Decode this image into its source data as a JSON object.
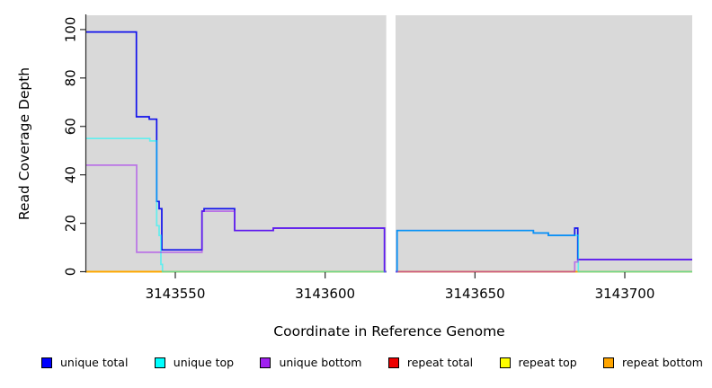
{
  "chart_data": {
    "type": "line",
    "subtype": "step-coverage",
    "title": "",
    "xlabel": "Coordinate in Reference Genome",
    "ylabel": "Read Coverage Depth",
    "xlim": [
      3143520.3,
      3143722.5
    ],
    "ylim": [
      0,
      105.9
    ],
    "x_ticks": [
      3143550,
      3143600,
      3143650,
      3143700
    ],
    "y_ticks": [
      0,
      20,
      40,
      60,
      80,
      100
    ],
    "grid": false,
    "legend_position": "bottom",
    "panel_bg": "#d9d9d9",
    "axis_color": "#2b2b2b",
    "no_data_gap": {
      "from": 3143620.4,
      "to": 3143623.5
    },
    "series": [
      {
        "name": "repeat total",
        "key": "repeat_total",
        "color": "#EE0000",
        "alpha": 1,
        "paths": [
          [
            [
              3143520.3,
              0
            ],
            [
              3143620.4,
              0
            ]
          ],
          [
            [
              3143623.5,
              0
            ],
            [
              3143722.5,
              0
            ]
          ]
        ]
      },
      {
        "name": "repeat top",
        "key": "repeat_top",
        "color": "#FFFF00",
        "alpha": 1,
        "paths": [
          [
            [
              3143520.3,
              0
            ],
            [
              3143620.4,
              0
            ]
          ],
          [
            [
              3143623.5,
              0
            ],
            [
              3143722.5,
              0
            ]
          ]
        ]
      },
      {
        "name": "repeat bottom",
        "key": "repeat_bottom",
        "color": "#FFA500",
        "alpha": 1,
        "paths": [
          [
            [
              3143520.3,
              0
            ],
            [
              3143620.4,
              0
            ]
          ],
          [
            [
              3143623.5,
              0
            ],
            [
              3143722.5,
              0
            ]
          ]
        ]
      },
      {
        "name": "unique total",
        "key": "unique_total",
        "color": "#0000EE",
        "alpha": 0.92,
        "paths": [
          [
            [
              3143520.3,
              99
            ],
            [
              3143537.0,
              99
            ],
            [
              3143537.0,
              64
            ],
            [
              3143541.3,
              64
            ],
            [
              3143541.3,
              63
            ],
            [
              3143543.8,
              63
            ],
            [
              3143543.8,
              29
            ],
            [
              3143544.6,
              29
            ],
            [
              3143544.6,
              26
            ],
            [
              3143545.5,
              26
            ],
            [
              3143545.5,
              9
            ],
            [
              3143558.9,
              9
            ],
            [
              3143558.9,
              25
            ],
            [
              3143559.6,
              25
            ],
            [
              3143559.6,
              26
            ],
            [
              3143569.8,
              26
            ],
            [
              3143569.8,
              17
            ],
            [
              3143582.7,
              17
            ],
            [
              3143582.7,
              18
            ],
            [
              3143619.8,
              18
            ],
            [
              3143619.8,
              0
            ],
            [
              3143620.4,
              0
            ]
          ],
          [
            [
              3143623.5,
              0
            ],
            [
              3143624.0,
              0
            ],
            [
              3143624.0,
              17
            ],
            [
              3143669.5,
              17
            ],
            [
              3143669.5,
              16
            ],
            [
              3143674.5,
              16
            ],
            [
              3143674.5,
              15
            ],
            [
              3143683.3,
              15
            ],
            [
              3143683.3,
              18
            ],
            [
              3143684.3,
              18
            ],
            [
              3143684.3,
              5
            ],
            [
              3143722.5,
              5
            ]
          ]
        ]
      },
      {
        "name": "unique top",
        "key": "unique_top",
        "color": "#00FFFF",
        "alpha": 0.55,
        "paths": [
          [
            [
              3143520.3,
              55
            ],
            [
              3143541.5,
              55
            ],
            [
              3143541.5,
              54
            ],
            [
              3143543.8,
              54
            ],
            [
              3143543.8,
              19
            ],
            [
              3143544.6,
              19
            ],
            [
              3143544.6,
              15
            ],
            [
              3143545.2,
              15
            ],
            [
              3143545.2,
              3
            ],
            [
              3143545.7,
              3
            ],
            [
              3143545.7,
              0
            ],
            [
              3143620.4,
              0
            ]
          ],
          [
            [
              3143623.5,
              0
            ],
            [
              3143624.0,
              0
            ],
            [
              3143624.0,
              17
            ],
            [
              3143669.5,
              17
            ],
            [
              3143669.5,
              16
            ],
            [
              3143674.5,
              16
            ],
            [
              3143674.5,
              15
            ],
            [
              3143684.5,
              15
            ],
            [
              3143684.5,
              0
            ],
            [
              3143722.5,
              0
            ]
          ]
        ]
      },
      {
        "name": "unique bottom",
        "key": "unique_bottom",
        "color": "#A020F0",
        "alpha": 0.55,
        "paths": [
          [
            [
              3143520.3,
              44
            ],
            [
              3143537.1,
              44
            ],
            [
              3143537.1,
              8
            ],
            [
              3143558.9,
              8
            ],
            [
              3143558.9,
              25
            ],
            [
              3143569.8,
              25
            ],
            [
              3143569.8,
              17
            ],
            [
              3143582.7,
              17
            ],
            [
              3143582.7,
              18
            ],
            [
              3143619.8,
              18
            ],
            [
              3143619.8,
              0
            ],
            [
              3143620.4,
              0
            ]
          ],
          [
            [
              3143623.5,
              0
            ],
            [
              3143683.3,
              0
            ],
            [
              3143683.3,
              4
            ],
            [
              3143684.3,
              4
            ],
            [
              3143684.3,
              5
            ],
            [
              3143722.5,
              5
            ]
          ]
        ]
      }
    ],
    "legend": [
      {
        "label": "unique total",
        "color": "#0000FF"
      },
      {
        "label": "unique top",
        "color": "#00FFFF"
      },
      {
        "label": "unique bottom",
        "color": "#A020F0"
      },
      {
        "label": "repeat total",
        "color": "#EE0000"
      },
      {
        "label": "repeat top",
        "color": "#FFFF00"
      },
      {
        "label": "repeat bottom",
        "color": "#FFA500"
      }
    ]
  }
}
